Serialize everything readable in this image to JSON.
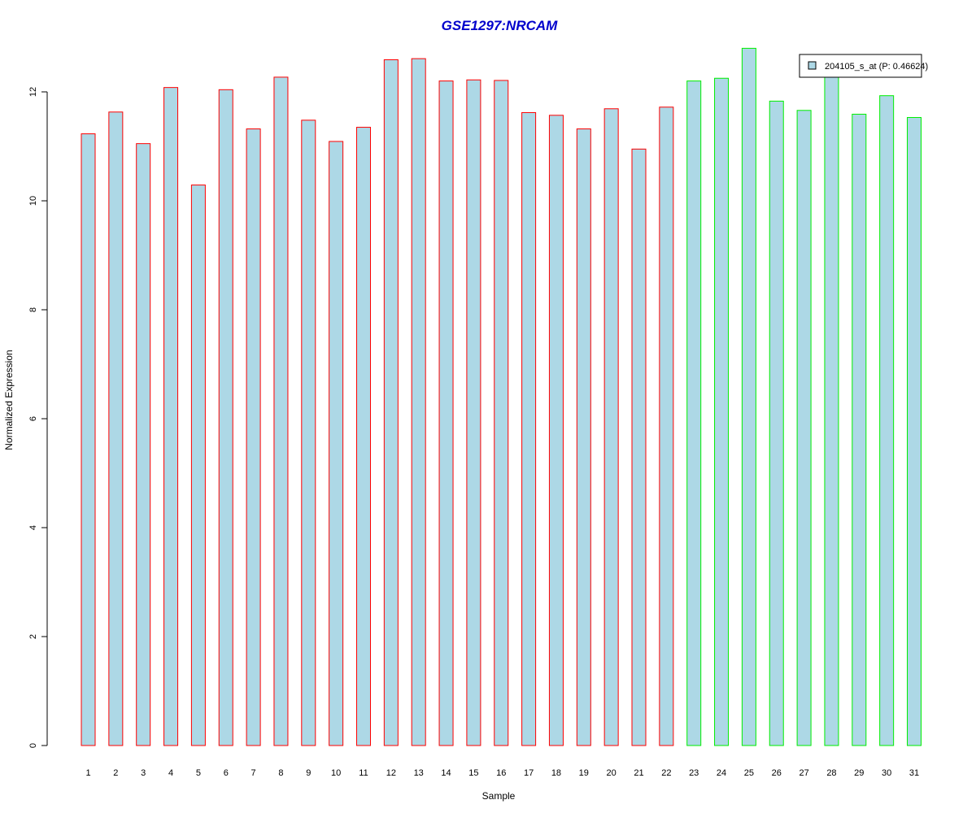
{
  "chart_data": {
    "type": "bar",
    "title": "GSE1297:NRCAM",
    "xlabel": "Sample",
    "ylabel": "Normalized Expression",
    "ylim": [
      0,
      12.8
    ],
    "yticks": [
      "0",
      "2",
      "4",
      "6",
      "8",
      "10",
      "12"
    ],
    "categories": [
      "1",
      "2",
      "3",
      "4",
      "5",
      "6",
      "7",
      "8",
      "9",
      "10",
      "11",
      "12",
      "13",
      "14",
      "15",
      "16",
      "17",
      "18",
      "19",
      "20",
      "21",
      "22",
      "23",
      "24",
      "25",
      "26",
      "27",
      "28",
      "29",
      "30",
      "31"
    ],
    "series": [
      {
        "name": "204105_s_at (P: 0.46624)",
        "values": [
          11.23,
          11.63,
          11.05,
          12.08,
          10.29,
          12.04,
          11.32,
          12.27,
          11.48,
          11.09,
          11.35,
          12.59,
          12.61,
          12.2,
          12.22,
          12.21,
          11.62,
          11.57,
          11.32,
          11.69,
          10.95,
          11.72,
          12.2,
          12.25,
          12.8,
          11.83,
          11.66,
          12.31,
          11.59,
          11.93,
          11.53
        ]
      }
    ],
    "groups": [
      {
        "from": 1,
        "to": 22,
        "border_color": "#ff0000"
      },
      {
        "from": 23,
        "to": 31,
        "border_color": "#00ee00"
      }
    ],
    "bar_fill": "#add8e6",
    "legend_position": "top-right",
    "grid": false
  }
}
